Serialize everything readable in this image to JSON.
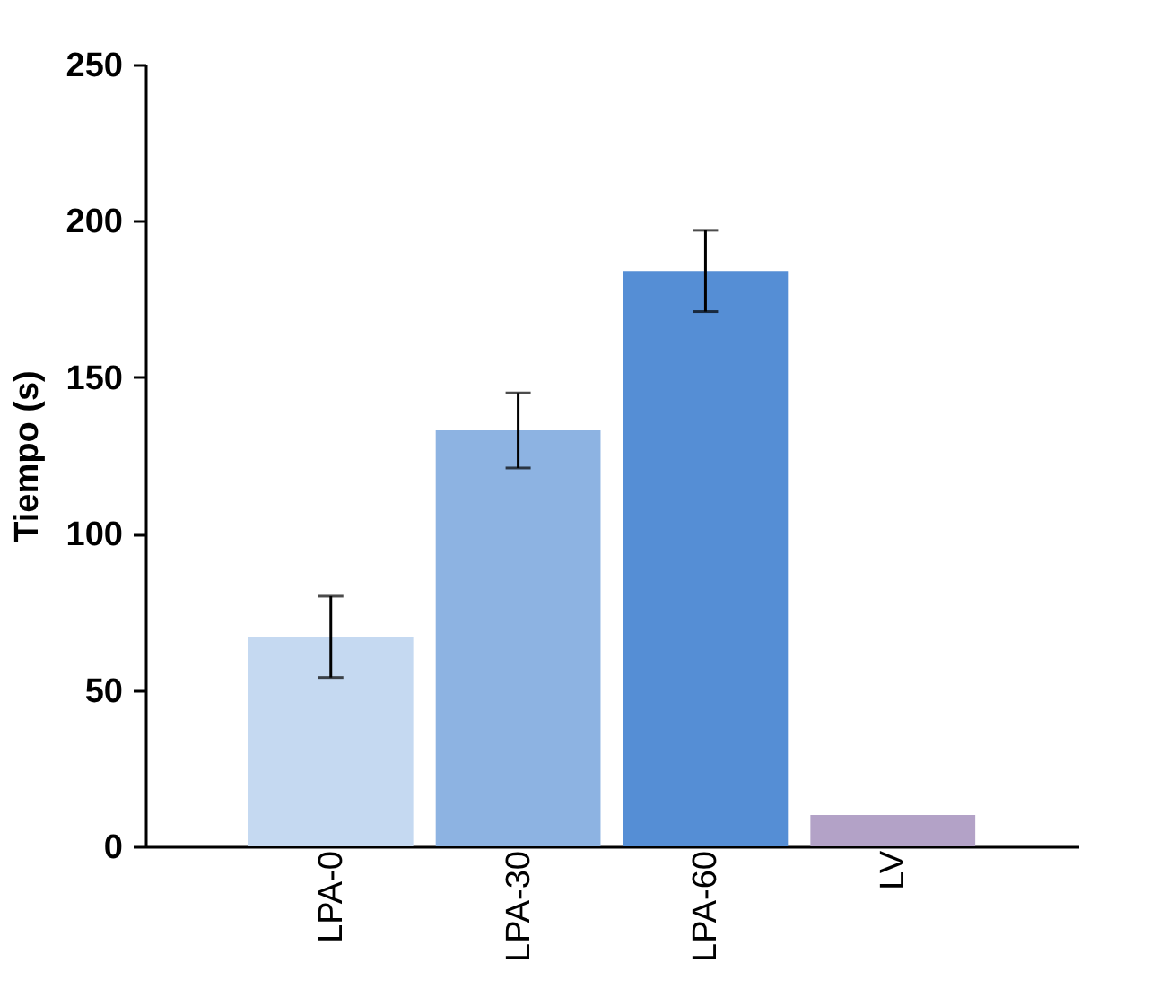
{
  "chart_data": {
    "type": "bar",
    "ylabel": "Tiempo (s)",
    "categories": [
      "LPA-0",
      "LPA-30",
      "LPA-60",
      "LV"
    ],
    "values": [
      67,
      133,
      184,
      10
    ],
    "errors": [
      13,
      12,
      13,
      null
    ],
    "colors": [
      "#c5d9f1",
      "#8db3e2",
      "#558ed5",
      "#b3a2c7"
    ],
    "ylim": [
      0,
      250
    ],
    "yticks": [
      0,
      50,
      100,
      150,
      200,
      250
    ],
    "grid": false,
    "legend": false
  }
}
